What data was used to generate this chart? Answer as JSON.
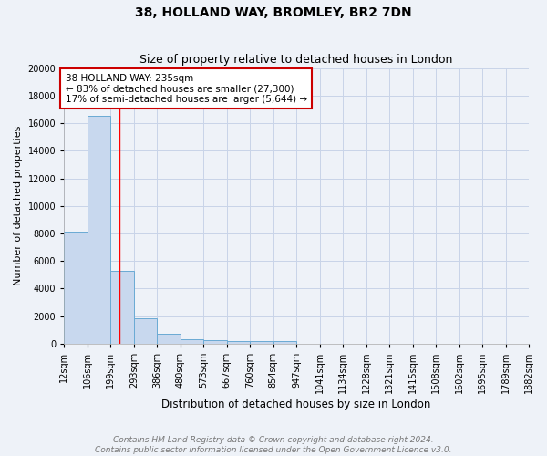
{
  "title1": "38, HOLLAND WAY, BROMLEY, BR2 7DN",
  "title2": "Size of property relative to detached houses in London",
  "xlabel": "Distribution of detached houses by size in London",
  "ylabel": "Number of detached properties",
  "bar_edges": [
    12,
    106,
    199,
    293,
    386,
    480,
    573,
    667,
    760,
    854,
    947,
    1041,
    1134,
    1228,
    1321,
    1415,
    1508,
    1602,
    1695,
    1789,
    1882
  ],
  "bar_heights": [
    8100,
    16500,
    5300,
    1850,
    700,
    300,
    230,
    200,
    200,
    170,
    0,
    0,
    0,
    0,
    0,
    0,
    0,
    0,
    0,
    0
  ],
  "bar_color": "#c8d8ee",
  "bar_edge_color": "#6aaad4",
  "grid_color": "#c8d4e8",
  "bg_color": "#eef2f8",
  "red_line_x": 235,
  "annotation_text": "38 HOLLAND WAY: 235sqm\n← 83% of detached houses are smaller (27,300)\n17% of semi-detached houses are larger (5,644) →",
  "annotation_box_color": "#ffffff",
  "annotation_border_color": "#cc0000",
  "ylim": [
    0,
    20000
  ],
  "yticks": [
    0,
    2000,
    4000,
    6000,
    8000,
    10000,
    12000,
    14000,
    16000,
    18000,
    20000
  ],
  "footnote": "Contains HM Land Registry data © Crown copyright and database right 2024.\nContains public sector information licensed under the Open Government Licence v3.0.",
  "title1_fontsize": 10,
  "title2_fontsize": 9,
  "xlabel_fontsize": 8.5,
  "ylabel_fontsize": 8,
  "tick_fontsize": 7,
  "annot_fontsize": 7.5,
  "footnote_fontsize": 6.5
}
